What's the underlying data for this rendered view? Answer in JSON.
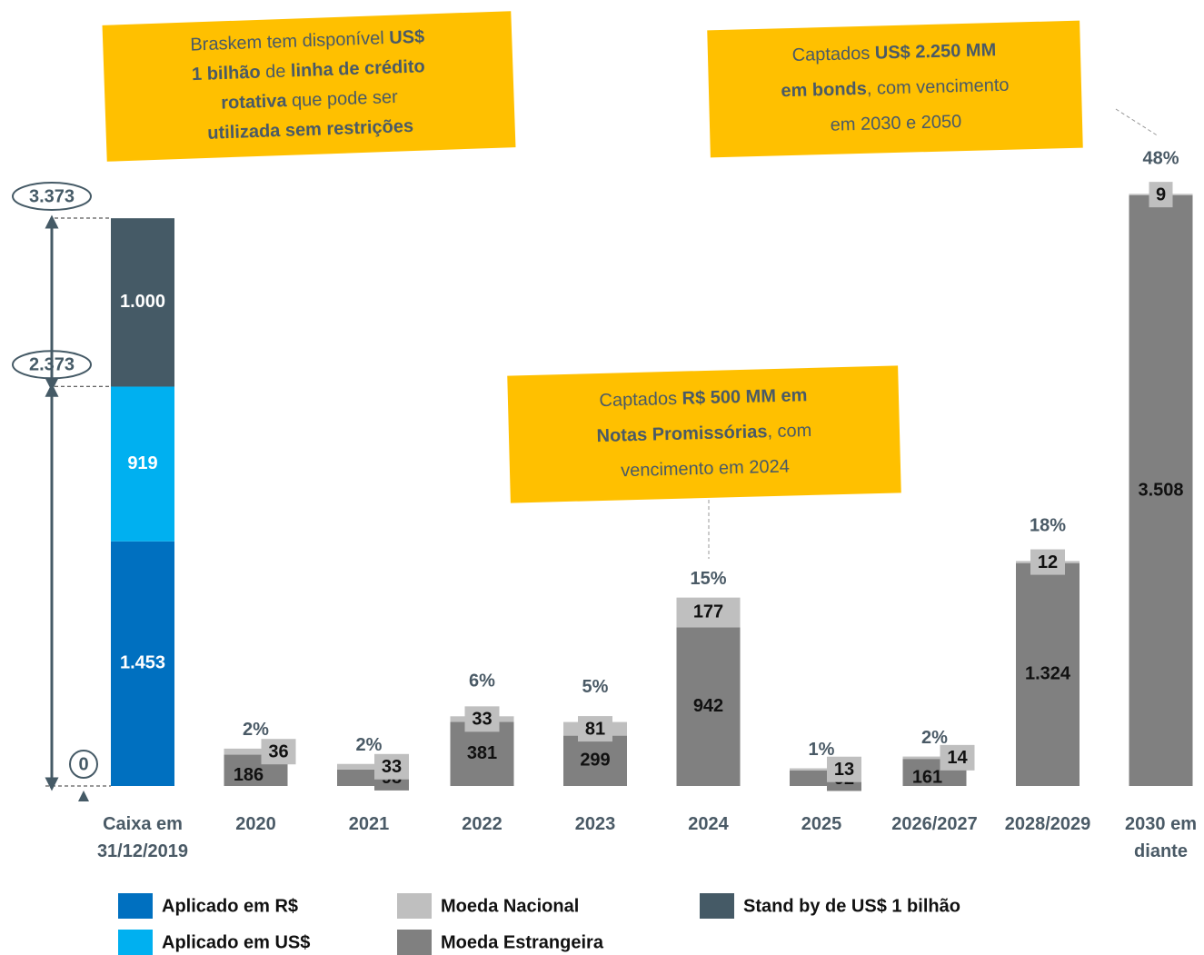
{
  "chart_data": {
    "type": "stacked-bar",
    "categories": [
      "Caixa em 31/12/2019",
      "2020",
      "2021",
      "2022",
      "2023",
      "2024",
      "2025",
      "2026/2027",
      "2028/2029",
      "2030 em diante"
    ],
    "series": [
      {
        "name": "Aplicado em R$",
        "color": "#0070c0",
        "values": [
          1453,
          null,
          null,
          null,
          null,
          null,
          null,
          null,
          null,
          null
        ],
        "value_labels": [
          "1.453",
          null,
          null,
          null,
          null,
          null,
          null,
          null,
          null,
          null
        ]
      },
      {
        "name": "Aplicado em US$",
        "color": "#00b0f0",
        "values": [
          919,
          null,
          null,
          null,
          null,
          null,
          null,
          null,
          null,
          null
        ]
      },
      {
        "name": "Stand by de US$ 1 bilhão",
        "color": "#455a66",
        "values": [
          1000,
          null,
          null,
          null,
          null,
          null,
          null,
          null,
          null,
          null
        ],
        "value_labels": [
          "1.000",
          null,
          null,
          null,
          null,
          null,
          null,
          null,
          null,
          null
        ]
      },
      {
        "name": "Moeda Estrangeira",
        "color": "#808080",
        "values": [
          null,
          186,
          98,
          381,
          299,
          942,
          92,
          161,
          1324,
          3508
        ],
        "value_labels": [
          null,
          "186",
          "98",
          "381",
          "299",
          "942",
          "92",
          "161",
          "1.324",
          "3.508"
        ]
      },
      {
        "name": "Moeda Nacional",
        "color": "#bfbfbf",
        "values": [
          null,
          36,
          33,
          33,
          81,
          177,
          13,
          14,
          12,
          9
        ]
      }
    ],
    "share_labels": [
      null,
      "2%",
      "2%",
      "6%",
      "5%",
      "15%",
      "1%",
      "2%",
      "18%",
      "48%"
    ],
    "ylim": [
      0,
      3373
    ],
    "yticks": [
      0,
      {
        "value": 2373,
        "label": "2.373"
      },
      {
        "value": 3373,
        "label": "3.373"
      }
    ],
    "annotations": [
      {
        "lines": [
          [
            {
              "text": "Braskem tem disponível ",
              "bold": false
            },
            {
              "text": "US$",
              "bold": true
            }
          ],
          [
            {
              "text": "1 bilhão",
              "bold": true
            },
            {
              "text": " de ",
              "bold": false
            },
            {
              "text": "linha de crédito",
              "bold": true
            }
          ],
          [
            {
              "text": "rotativa",
              "bold": true
            },
            {
              "text": " que pode ser",
              "bold": false
            }
          ],
          [
            {
              "text": "utilizada sem restrições",
              "bold": true
            }
          ]
        ]
      },
      {
        "lines": [
          [
            {
              "text": "Captados ",
              "bold": false
            },
            {
              "text": "US$ 2.250 MM",
              "bold": true
            }
          ],
          [
            {
              "text": "em bonds",
              "bold": true
            },
            {
              "text": ", com vencimento",
              "bold": false
            }
          ],
          [
            {
              "text": "em 2030 e 2050",
              "bold": false
            }
          ]
        ]
      },
      {
        "lines": [
          [
            {
              "text": "Captados ",
              "bold": false
            },
            {
              "text": "R$ 500 MM em",
              "bold": true
            }
          ],
          [
            {
              "text": "Notas Promissórias",
              "bold": true
            },
            {
              "text": ", com",
              "bold": false
            }
          ],
          [
            {
              "text": "vencimento em 2024",
              "bold": false
            }
          ]
        ]
      }
    ]
  }
}
